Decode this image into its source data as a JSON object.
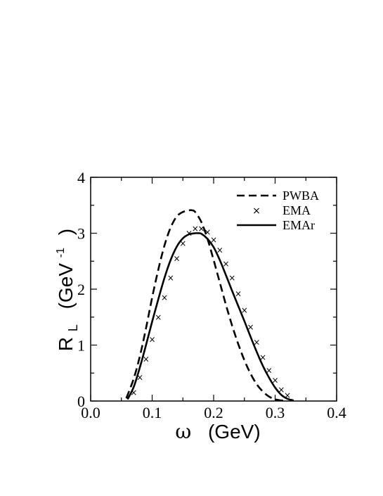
{
  "chart_data": {
    "type": "line",
    "xlabel_symbol": "ω",
    "xlabel_unit": "(GeV)",
    "ylabel_main": "R",
    "ylabel_sub": "L",
    "ylabel_unit": "(GeV",
    "ylabel_exp": "-1",
    "ylabel_close": ")",
    "xlim": [
      0.0,
      0.4
    ],
    "ylim": [
      0,
      4
    ],
    "x_ticks": [
      0.0,
      0.1,
      0.2,
      0.3,
      0.4
    ],
    "x_tick_labels": [
      "0.0",
      "0.1",
      "0.2",
      "0.3",
      "0.4"
    ],
    "y_ticks": [
      0,
      1,
      2,
      3,
      4
    ],
    "y_tick_labels": [
      "0",
      "1",
      "2",
      "3",
      "4"
    ],
    "legend_position": "top-right",
    "grid": false,
    "series": [
      {
        "name": "PWBA",
        "style": "dashed",
        "color": "#000000",
        "x": [
          0.058,
          0.07,
          0.08,
          0.09,
          0.1,
          0.11,
          0.12,
          0.13,
          0.14,
          0.15,
          0.16,
          0.165,
          0.17,
          0.18,
          0.19,
          0.2,
          0.21,
          0.22,
          0.23,
          0.24,
          0.25,
          0.26,
          0.27,
          0.28,
          0.29,
          0.3,
          0.31,
          0.32
        ],
        "y": [
          0.05,
          0.4,
          0.8,
          1.3,
          1.85,
          2.35,
          2.78,
          3.1,
          3.3,
          3.38,
          3.41,
          3.41,
          3.38,
          3.2,
          2.9,
          2.52,
          2.12,
          1.72,
          1.35,
          1.02,
          0.73,
          0.49,
          0.3,
          0.17,
          0.08,
          0.03,
          0.01,
          0.0
        ]
      },
      {
        "name": "EMA",
        "style": "markers",
        "marker": "x",
        "color": "#000000",
        "x": [
          0.07,
          0.08,
          0.09,
          0.1,
          0.11,
          0.12,
          0.13,
          0.14,
          0.15,
          0.16,
          0.17,
          0.18,
          0.19,
          0.2,
          0.21,
          0.22,
          0.23,
          0.24,
          0.25,
          0.26,
          0.27,
          0.28,
          0.29,
          0.3,
          0.31,
          0.32
        ],
        "y": [
          0.15,
          0.42,
          0.75,
          1.1,
          1.5,
          1.85,
          2.2,
          2.55,
          2.82,
          3.0,
          3.08,
          3.08,
          3.02,
          2.88,
          2.7,
          2.45,
          2.2,
          1.92,
          1.62,
          1.32,
          1.05,
          0.78,
          0.55,
          0.37,
          0.2,
          0.1
        ]
      },
      {
        "name": "EMAr",
        "style": "solid",
        "color": "#000000",
        "x": [
          0.06,
          0.07,
          0.08,
          0.09,
          0.1,
          0.11,
          0.12,
          0.13,
          0.14,
          0.15,
          0.16,
          0.17,
          0.175,
          0.18,
          0.19,
          0.2,
          0.21,
          0.22,
          0.23,
          0.24,
          0.25,
          0.26,
          0.27,
          0.28,
          0.29,
          0.3,
          0.31,
          0.32,
          0.33
        ],
        "y": [
          0.03,
          0.25,
          0.6,
          1.0,
          1.42,
          1.82,
          2.2,
          2.52,
          2.76,
          2.91,
          2.98,
          3.0,
          3.0,
          2.99,
          2.9,
          2.75,
          2.52,
          2.25,
          1.97,
          1.7,
          1.43,
          1.15,
          0.88,
          0.63,
          0.42,
          0.24,
          0.11,
          0.04,
          0.01
        ]
      }
    ]
  }
}
